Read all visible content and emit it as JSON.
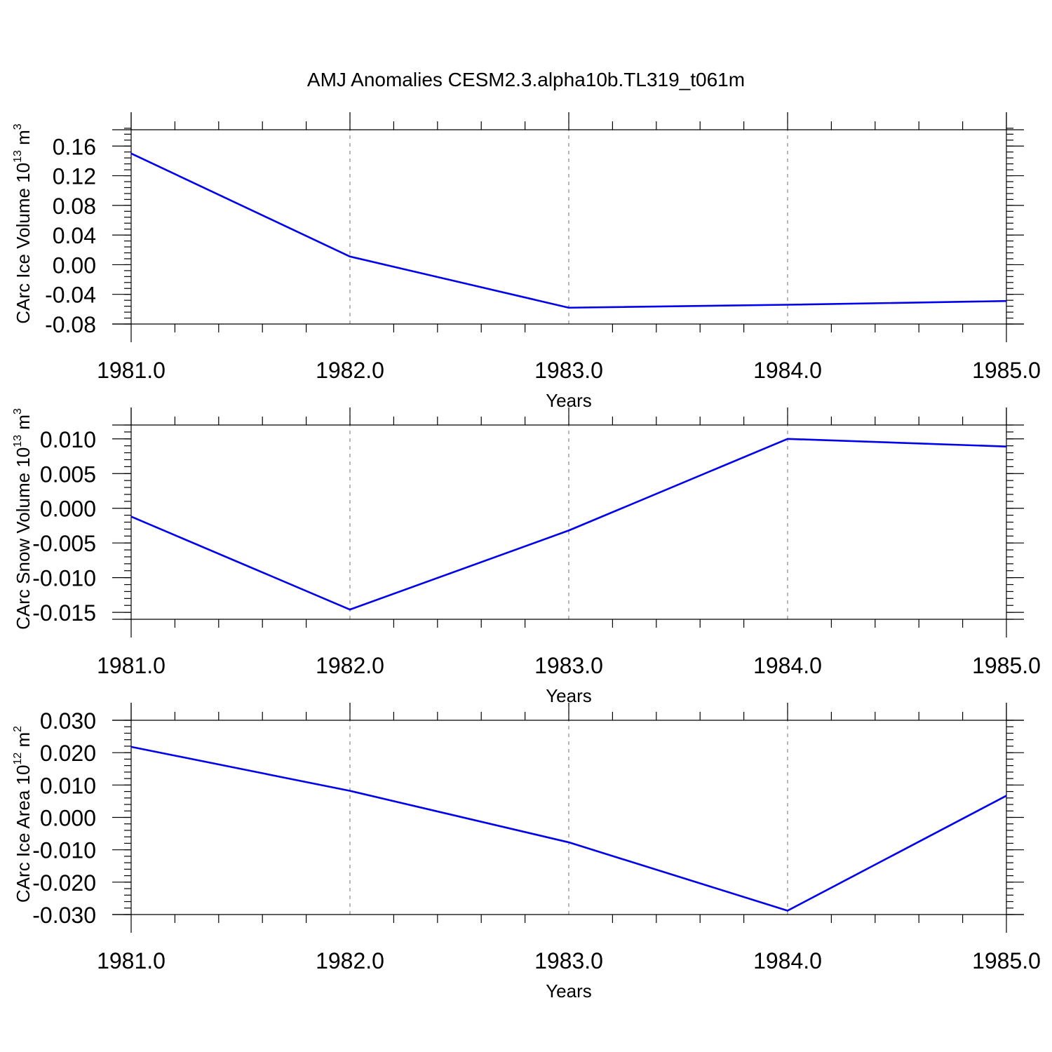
{
  "title": "AMJ Anomalies CESM2.3.alpha10b.TL319_t061m",
  "colors": {
    "line": "#0000ee",
    "grid": "#888888",
    "frame": "#000000"
  },
  "chart_data": [
    {
      "type": "line",
      "ylabel": {
        "text": "CArc Ice Volume 10",
        "exponent": "13",
        "unit": " m",
        "unit_exponent": "3"
      },
      "xlabel": "Years",
      "x": [
        1981,
        1982,
        1983,
        1984,
        1985
      ],
      "xlim": [
        1981,
        1985
      ],
      "x_ticks": [
        "1981.0",
        "1982.0",
        "1983.0",
        "1984.0",
        "1985.0"
      ],
      "ylim": [
        -0.08,
        0.16
      ],
      "y_ticks": [
        0.16,
        0.12,
        0.08,
        0.04,
        0.0,
        -0.04,
        -0.08
      ],
      "y_tick_labels": [
        "0.16",
        "0.12",
        "0.08",
        "0.04",
        "0.00",
        "-0.04",
        "-0.08"
      ],
      "y_top": 0.182,
      "y_minor_step": 0.008,
      "grid": "x dashed",
      "series": [
        {
          "values": [
            0.15,
            0.011,
            -0.058,
            -0.054,
            -0.049
          ]
        }
      ]
    },
    {
      "type": "line",
      "ylabel": {
        "text": "CArc Snow Volume 10",
        "exponent": "13",
        "unit": " m",
        "unit_exponent": "3"
      },
      "xlabel": "Years",
      "x": [
        1981,
        1982,
        1983,
        1984,
        1985
      ],
      "xlim": [
        1981,
        1985
      ],
      "x_ticks": [
        "1981.0",
        "1982.0",
        "1983.0",
        "1984.0",
        "1985.0"
      ],
      "ylim": [
        -0.016,
        0.012
      ],
      "y_ticks": [
        0.01,
        0.005,
        0.0,
        -0.005,
        -0.01,
        -0.015
      ],
      "y_tick_labels": [
        "0.010",
        "0.005",
        "0.000",
        "-0.005",
        "-0.010",
        "-0.015"
      ],
      "y_top": 0.012,
      "y_minor_step": 0.001,
      "grid": "x dashed",
      "series": [
        {
          "values": [
            -0.0012,
            -0.0146,
            -0.0032,
            0.01,
            0.0089
          ]
        }
      ]
    },
    {
      "type": "line",
      "ylabel": {
        "text": "CArc Ice Area 10",
        "exponent": "12",
        "unit": " m",
        "unit_exponent": "2"
      },
      "xlabel": "Years",
      "x": [
        1981,
        1982,
        1983,
        1984,
        1985
      ],
      "xlim": [
        1981,
        1985
      ],
      "x_ticks": [
        "1981.0",
        "1982.0",
        "1983.0",
        "1984.0",
        "1985.0"
      ],
      "ylim": [
        -0.03,
        0.03
      ],
      "y_ticks": [
        0.03,
        0.02,
        0.01,
        0.0,
        -0.01,
        -0.02,
        -0.03
      ],
      "y_tick_labels": [
        "0.030",
        "0.020",
        "0.010",
        "0.000",
        "-0.010",
        "-0.020",
        "-0.030"
      ],
      "y_top": 0.03,
      "y_minor_step": 0.002,
      "grid": "x dashed",
      "series": [
        {
          "values": [
            0.0218,
            0.0082,
            -0.0077,
            -0.0288,
            0.0067
          ]
        }
      ]
    }
  ]
}
